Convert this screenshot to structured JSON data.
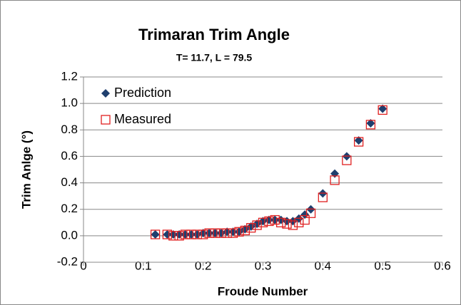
{
  "chart_data": {
    "type": "scatter",
    "title": "Trimaran Trim Angle",
    "subtitle": "T= 11.7, L = 79.5",
    "x_label": "Froude Number",
    "y_label": "Trim Anlge (°)",
    "xlim": [
      0,
      0.6
    ],
    "xticks": [
      0,
      0.1,
      0.2,
      0.3,
      0.4,
      0.5,
      0.6
    ],
    "ylim": [
      -0.2,
      1.2
    ],
    "yticks": [
      -0.2,
      {
        "value": 0,
        "label": "0.0"
      },
      0.2,
      0.4,
      0.6,
      0.8,
      {
        "value": 1,
        "label": "1.0"
      },
      1.2
    ],
    "grid": true,
    "legend": "upper left",
    "x": [
      0.12,
      0.14,
      0.15,
      0.16,
      0.17,
      0.18,
      0.19,
      0.2,
      0.21,
      0.22,
      0.23,
      0.24,
      0.25,
      0.26,
      0.27,
      0.28,
      0.29,
      0.3,
      0.31,
      0.32,
      0.33,
      0.34,
      0.35,
      0.36,
      0.37,
      0.38,
      0.4,
      0.42,
      0.44,
      0.46,
      0.48,
      0.5
    ],
    "series": [
      {
        "name": "Prediction",
        "color": "#1f3f6e",
        "marker": "diamond",
        "values": [
          0.01,
          0.01,
          0.01,
          0.01,
          0.01,
          0.01,
          0.01,
          0.02,
          0.02,
          0.02,
          0.02,
          0.03,
          0.03,
          0.03,
          0.05,
          0.07,
          0.09,
          0.11,
          0.12,
          0.12,
          0.12,
          0.11,
          0.11,
          0.13,
          0.16,
          0.2,
          0.32,
          0.47,
          0.6,
          0.72,
          0.85,
          0.96
        ]
      },
      {
        "name": "Measured",
        "color": "#e02020",
        "marker": "square",
        "values": [
          0.01,
          0.01,
          0,
          0,
          0.01,
          0.01,
          0.01,
          0.01,
          0.02,
          0.02,
          0.02,
          0.02,
          0.02,
          0.03,
          0.04,
          0.06,
          0.08,
          0.1,
          0.11,
          0.12,
          0.1,
          0.09,
          0.08,
          0.1,
          0.12,
          0.17,
          0.29,
          0.42,
          0.57,
          0.71,
          0.84,
          0.95
        ]
      }
    ]
  }
}
